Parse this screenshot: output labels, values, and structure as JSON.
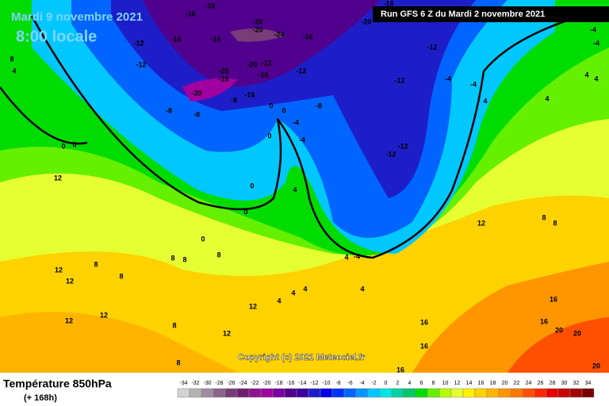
{
  "header": {
    "date": "Mardi 9 novembre 2021",
    "time": "8:00 locale",
    "run": "Run GFS 6 Z du Mardi 2 novembre 2021"
  },
  "footer": {
    "title": "Température 850hPa",
    "range": "(+ 168h)",
    "copyright": "Copyright (c) 2021 Meteociel.fr"
  },
  "legend": {
    "values": [
      -34,
      -32,
      -30,
      -28,
      -26,
      -24,
      -22,
      -20,
      -18,
      -16,
      -14,
      -12,
      -10,
      -8,
      -6,
      -4,
      -2,
      0,
      2,
      4,
      6,
      8,
      10,
      12,
      14,
      16,
      18,
      20,
      22,
      24,
      26,
      28,
      30,
      32,
      34
    ],
    "colors": [
      "#d2d2d2",
      "#b4b4b4",
      "#a08ca0",
      "#8c648c",
      "#783c78",
      "#6e1e6e",
      "#8c148c",
      "#a000a0",
      "#7800a0",
      "#50008c",
      "#3c00a0",
      "#1e1ec8",
      "#0000e6",
      "#0032ff",
      "#0064ff",
      "#0096ff",
      "#00c8ff",
      "#00e6e6",
      "#00d2a0",
      "#00c864",
      "#00dc00",
      "#64f000",
      "#b4ff00",
      "#e6ff32",
      "#fff000",
      "#ffd200",
      "#ffb400",
      "#ff9600",
      "#ff7800",
      "#ff5000",
      "#ff2800",
      "#e60000",
      "#c80000",
      "#a00000",
      "#780000"
    ]
  },
  "map": {
    "labels": [
      -16,
      -16,
      -16,
      -12,
      -12,
      -16,
      -16,
      -20,
      -20,
      -24,
      -16,
      -20,
      -12,
      -12,
      -4,
      -4,
      -12,
      -12,
      -8,
      -12,
      -20,
      -12,
      -16,
      -20,
      -16,
      -20,
      -8,
      -16,
      -8,
      -8,
      0,
      0,
      -4,
      -4,
      0,
      0,
      4,
      0,
      0,
      4,
      8,
      8,
      8,
      8,
      8,
      12,
      12,
      12,
      8,
      4,
      0,
      0,
      12,
      12,
      12,
      8,
      12,
      8,
      4,
      4,
      4,
      16,
      16,
      16,
      16,
      16,
      20,
      20,
      20,
      4,
      4,
      4,
      -4,
      -4,
      4,
      8,
      8,
      12,
      4,
      -4
    ]
  }
}
